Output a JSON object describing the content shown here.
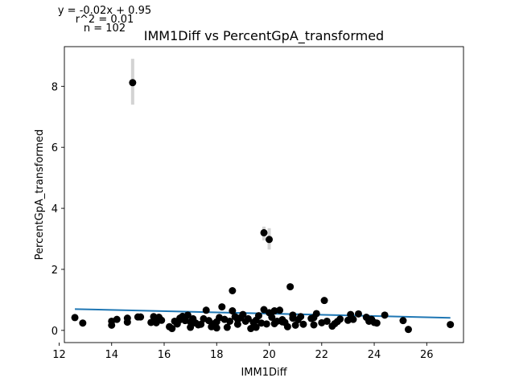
{
  "annotations": {
    "equation": "y = -0.02x + 0.95",
    "r_squared": "r^2 = 0.01",
    "n": "n = 102"
  },
  "chart_data": {
    "type": "scatter",
    "title": "IMM1Diff vs PercentGpA_transformed",
    "xlabel": "IMM1Diff",
    "ylabel": "PercentGpA_transformed",
    "xlim": [
      12.2,
      27.4
    ],
    "ylim": [
      -0.4,
      9.3
    ],
    "xticks": [
      12,
      14,
      16,
      18,
      20,
      22,
      24,
      26
    ],
    "yticks": [
      0,
      2,
      4,
      6,
      8
    ],
    "grid": false,
    "colors": {
      "points": "#000000",
      "fit_line": "#1f77b4",
      "error_bars": "#d3d3d3",
      "axes": "#000000"
    },
    "fit_line": {
      "slope": -0.02,
      "intercept": 0.95,
      "x_range": [
        12.6,
        26.9
      ]
    },
    "error_bars": [
      {
        "x": 14.8,
        "low": 7.4,
        "high": 8.9
      },
      {
        "x": 19.8,
        "low": 2.95,
        "high": 3.4
      },
      {
        "x": 20.0,
        "low": 2.65,
        "high": 3.35
      }
    ],
    "points": [
      [
        12.6,
        0.42
      ],
      [
        12.9,
        0.24
      ],
      [
        14.0,
        0.17
      ],
      [
        14.0,
        0.3
      ],
      [
        14.2,
        0.36
      ],
      [
        14.6,
        0.27
      ],
      [
        14.6,
        0.4
      ],
      [
        14.8,
        8.12
      ],
      [
        15.0,
        0.44
      ],
      [
        15.5,
        0.26
      ],
      [
        15.6,
        0.45
      ],
      [
        15.7,
        0.25
      ],
      [
        15.8,
        0.43
      ],
      [
        15.9,
        0.33
      ],
      [
        16.3,
        0.06
      ],
      [
        16.4,
        0.3
      ],
      [
        16.5,
        0.21
      ],
      [
        16.6,
        0.4
      ],
      [
        16.7,
        0.46
      ],
      [
        16.8,
        0.32
      ],
      [
        16.9,
        0.5
      ],
      [
        17.0,
        0.1
      ],
      [
        17.1,
        0.38
      ],
      [
        17.2,
        0.24
      ],
      [
        17.4,
        0.2
      ],
      [
        17.5,
        0.38
      ],
      [
        17.6,
        0.66
      ],
      [
        17.7,
        0.32
      ],
      [
        17.8,
        0.12
      ],
      [
        18.0,
        0.28
      ],
      [
        18.1,
        0.42
      ],
      [
        18.2,
        0.77
      ],
      [
        18.3,
        0.36
      ],
      [
        18.4,
        0.1
      ],
      [
        18.5,
        0.3
      ],
      [
        18.6,
        1.3
      ],
      [
        18.6,
        0.64
      ],
      [
        18.7,
        0.45
      ],
      [
        18.8,
        0.2
      ],
      [
        18.9,
        0.41
      ],
      [
        19.0,
        0.52
      ],
      [
        19.2,
        0.38
      ],
      [
        19.3,
        0.06
      ],
      [
        19.4,
        0.26
      ],
      [
        19.5,
        0.33
      ],
      [
        19.6,
        0.48
      ],
      [
        19.7,
        0.24
      ],
      [
        19.8,
        0.68
      ],
      [
        19.8,
        3.2
      ],
      [
        19.9,
        0.21
      ],
      [
        20.0,
        2.98
      ],
      [
        20.0,
        0.58
      ],
      [
        20.1,
        0.43
      ],
      [
        20.2,
        0.64
      ],
      [
        20.3,
        0.3
      ],
      [
        20.4,
        0.66
      ],
      [
        20.5,
        0.35
      ],
      [
        20.6,
        0.26
      ],
      [
        20.7,
        0.12
      ],
      [
        20.8,
        1.43
      ],
      [
        20.9,
        0.5
      ],
      [
        21.0,
        0.17
      ],
      [
        21.1,
        0.35
      ],
      [
        21.2,
        0.45
      ],
      [
        21.6,
        0.39
      ],
      [
        21.7,
        0.18
      ],
      [
        21.8,
        0.55
      ],
      [
        22.0,
        0.25
      ],
      [
        22.1,
        0.98
      ],
      [
        22.2,
        0.3
      ],
      [
        22.4,
        0.14
      ],
      [
        22.6,
        0.29
      ],
      [
        22.7,
        0.37
      ],
      [
        23.1,
        0.52
      ],
      [
        23.2,
        0.36
      ],
      [
        23.4,
        0.54
      ],
      [
        23.7,
        0.43
      ],
      [
        23.8,
        0.3
      ],
      [
        24.0,
        0.26
      ],
      [
        24.4,
        0.5
      ],
      [
        25.1,
        0.32
      ],
      [
        25.3,
        0.03
      ],
      [
        26.9,
        0.19
      ],
      [
        16.6,
        0.35
      ],
      [
        17.3,
        0.18
      ],
      [
        18.0,
        0.08
      ],
      [
        19.1,
        0.3
      ],
      [
        20.5,
        0.28
      ],
      [
        21.3,
        0.2
      ],
      [
        22.5,
        0.22
      ],
      [
        23.9,
        0.36
      ],
      [
        15.1,
        0.44
      ],
      [
        16.2,
        0.12
      ],
      [
        17.9,
        0.22
      ],
      [
        19.5,
        0.1
      ],
      [
        20.9,
        0.4
      ],
      [
        21.7,
        0.42
      ],
      [
        23.0,
        0.33
      ],
      [
        24.1,
        0.24
      ],
      [
        18.8,
        0.36
      ],
      [
        17.0,
        0.28
      ],
      [
        20.2,
        0.22
      ]
    ]
  }
}
